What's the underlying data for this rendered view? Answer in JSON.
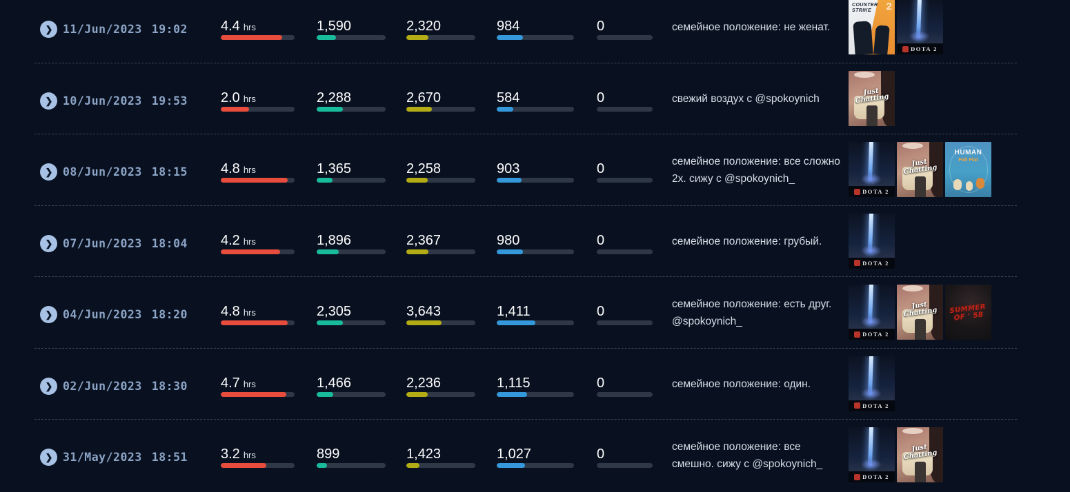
{
  "colors": {
    "background": "#091120",
    "duration": "#e74c3c",
    "stats": [
      "#18bc9c",
      "#b3ac15",
      "#3498db",
      "#3a4452"
    ],
    "track": "#2e3846",
    "number": "#fdfdfd",
    "date": "#8ca4c6",
    "title": "#d7dee8",
    "chevron_bg": "#a7c2e5"
  },
  "icons": {
    "chevron": "❯"
  },
  "games": {
    "cs2": {
      "name": "Counter-Strike 2",
      "line1": "COUNTER",
      "line2": "STRIKE",
      "badge": "2"
    },
    "dota2": {
      "name": "Dota 2",
      "label": "DOTA 2"
    },
    "jc": {
      "name": "Just Chatting",
      "label": "Just Chatting"
    },
    "hff": {
      "name": "Human Fall Flat",
      "line1": "HUMAN",
      "line2": "Fall Flat"
    },
    "s58": {
      "name": "Summer of '58",
      "line1": "SUMMER",
      "line2": "OF ' 58"
    }
  },
  "rows": [
    {
      "date": "11/Jun/2023",
      "time": "19:02",
      "duration": {
        "value": "4.4",
        "unit": "hrs",
        "pct": 83
      },
      "stats": [
        {
          "value": "1,590",
          "pct": 28
        },
        {
          "value": "2,320",
          "pct": 32
        },
        {
          "value": "984",
          "pct": 34
        },
        {
          "value": "0",
          "pct": 0
        }
      ],
      "title": "семейное положение: не женат.",
      "games": [
        "cs2",
        "dota2"
      ]
    },
    {
      "date": "10/Jun/2023",
      "time": "19:53",
      "duration": {
        "value": "2.0",
        "unit": "hrs",
        "pct": 38
      },
      "stats": [
        {
          "value": "2,288",
          "pct": 38
        },
        {
          "value": "2,670",
          "pct": 37
        },
        {
          "value": "584",
          "pct": 21
        },
        {
          "value": "0",
          "pct": 0
        }
      ],
      "title": "свежий воздух с @spokoynich",
      "games": [
        "jc"
      ]
    },
    {
      "date": "08/Jun/2023",
      "time": "18:15",
      "duration": {
        "value": "4.8",
        "unit": "hrs",
        "pct": 91
      },
      "stats": [
        {
          "value": "1,365",
          "pct": 23
        },
        {
          "value": "2,258",
          "pct": 31
        },
        {
          "value": "903",
          "pct": 32
        },
        {
          "value": "0",
          "pct": 0
        }
      ],
      "title": "семейное положение: все сложно 2x. сижу с @spokoynich_",
      "games": [
        "dota2",
        "jc",
        "hff"
      ]
    },
    {
      "date": "07/Jun/2023",
      "time": "18:04",
      "duration": {
        "value": "4.2",
        "unit": "hrs",
        "pct": 80
      },
      "stats": [
        {
          "value": "1,896",
          "pct": 32
        },
        {
          "value": "2,367",
          "pct": 32
        },
        {
          "value": "980",
          "pct": 34
        },
        {
          "value": "0",
          "pct": 0
        }
      ],
      "title": "семейное положение: грубый.",
      "games": [
        "dota2"
      ]
    },
    {
      "date": "04/Jun/2023",
      "time": "18:20",
      "duration": {
        "value": "4.8",
        "unit": "hrs",
        "pct": 91
      },
      "stats": [
        {
          "value": "2,305",
          "pct": 38
        },
        {
          "value": "3,643",
          "pct": 51
        },
        {
          "value": "1,411",
          "pct": 50
        },
        {
          "value": "0",
          "pct": 0
        }
      ],
      "title": "семейное положение: есть друг. @spokoynich_",
      "games": [
        "dota2",
        "jc",
        "s58"
      ]
    },
    {
      "date": "02/Jun/2023",
      "time": "18:30",
      "duration": {
        "value": "4.7",
        "unit": "hrs",
        "pct": 89
      },
      "stats": [
        {
          "value": "1,466",
          "pct": 24
        },
        {
          "value": "2,236",
          "pct": 31
        },
        {
          "value": "1,115",
          "pct": 39
        },
        {
          "value": "0",
          "pct": 0
        }
      ],
      "title": "семейное положение: один.",
      "games": [
        "dota2"
      ]
    },
    {
      "date": "31/May/2023",
      "time": "18:51",
      "duration": {
        "value": "3.2",
        "unit": "hrs",
        "pct": 62
      },
      "stats": [
        {
          "value": "899",
          "pct": 15
        },
        {
          "value": "1,423",
          "pct": 19
        },
        {
          "value": "1,027",
          "pct": 37
        },
        {
          "value": "0",
          "pct": 0
        }
      ],
      "title": "семейное положение: все смешно. сижу с @spokoynich_",
      "games": [
        "dota2",
        "jc"
      ]
    }
  ]
}
